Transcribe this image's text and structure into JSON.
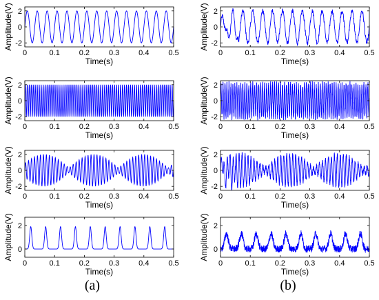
{
  "panel_labels": [
    "(a)",
    "(b)"
  ],
  "chart_data": [
    {
      "id": "a1",
      "type": "line",
      "column": 0,
      "row": 0,
      "xlabel": "Time(s)",
      "ylabel": "Amplitude(V)",
      "xlim": [
        0,
        0.5
      ],
      "ylim": [
        -2.5,
        2.5
      ],
      "yticks": [
        -2,
        0,
        2
      ],
      "xticks": [
        0,
        0.1,
        0.2,
        0.3,
        0.4,
        0.5
      ],
      "grid": false,
      "signal": {
        "kind": "sine",
        "amplitude": 2,
        "frequency_hz": 30,
        "points": 600,
        "noise": 0
      }
    },
    {
      "id": "b1",
      "type": "line",
      "column": 1,
      "row": 0,
      "xlabel": "Time(s)",
      "ylabel": "Amplitude(V)",
      "xlim": [
        0,
        0.5
      ],
      "ylim": [
        -2.5,
        2.5
      ],
      "yticks": [
        -2,
        0,
        2
      ],
      "xticks": [
        0,
        0.1,
        0.2,
        0.3,
        0.4,
        0.5
      ],
      "grid": false,
      "signal": {
        "kind": "sine",
        "amplitude": 2,
        "frequency_hz": 30,
        "points": 600,
        "noise": 0.3,
        "startup_distortion": true
      }
    },
    {
      "id": "a2",
      "type": "line",
      "column": 0,
      "row": 1,
      "xlabel": "Time(s)",
      "ylabel": "Amplitude(V)",
      "xlim": [
        0,
        0.5
      ],
      "ylim": [
        -2.5,
        2.5
      ],
      "yticks": [
        -2,
        0,
        2
      ],
      "xticks": [
        0,
        0.1,
        0.2,
        0.3,
        0.4,
        0.5
      ],
      "grid": false,
      "signal": {
        "kind": "sine",
        "amplitude": 2,
        "frequency_hz": 150,
        "points": 1500,
        "noise": 0
      }
    },
    {
      "id": "b2",
      "type": "line",
      "column": 1,
      "row": 1,
      "xlabel": "Time(s)",
      "ylabel": "Amplitude(V)",
      "xlim": [
        0,
        0.5
      ],
      "ylim": [
        -2.5,
        2.5
      ],
      "yticks": [
        -2,
        0,
        2
      ],
      "xticks": [
        0,
        0.1,
        0.2,
        0.3,
        0.4,
        0.5
      ],
      "grid": false,
      "signal": {
        "kind": "sine",
        "amplitude": 2,
        "frequency_hz": 150,
        "points": 1500,
        "noise": 0.45
      }
    },
    {
      "id": "a3",
      "type": "line",
      "column": 0,
      "row": 2,
      "xlabel": "Time(s)",
      "ylabel": "Amplitude(V)",
      "xlim": [
        0,
        0.5
      ],
      "ylim": [
        -2.5,
        2.5
      ],
      "yticks": [
        -2,
        0,
        2
      ],
      "xticks": [
        0,
        0.1,
        0.2,
        0.3,
        0.4,
        0.5
      ],
      "grid": false,
      "signal": {
        "kind": "am",
        "amplitude": 2,
        "carrier_hz": 100,
        "envelope_hz": 6,
        "points": 1200,
        "noise": 0
      }
    },
    {
      "id": "b3",
      "type": "line",
      "column": 1,
      "row": 2,
      "xlabel": "Time(s)",
      "ylabel": "Amplitude(V)",
      "xlim": [
        0,
        0.5
      ],
      "ylim": [
        -2.5,
        2.5
      ],
      "yticks": [
        -2,
        0,
        2
      ],
      "xticks": [
        0,
        0.1,
        0.2,
        0.3,
        0.4,
        0.5
      ],
      "grid": false,
      "signal": {
        "kind": "am",
        "amplitude": 2,
        "carrier_hz": 100,
        "envelope_hz": 6,
        "points": 1200,
        "noise": 0.3,
        "startup_distortion": true
      }
    },
    {
      "id": "a4",
      "type": "line",
      "column": 0,
      "row": 3,
      "xlabel": "Time(s)",
      "ylabel": "Amplitude(V)",
      "xlim": [
        0,
        0.5
      ],
      "ylim": [
        -0.7,
        2.7
      ],
      "yticks": [
        0,
        2
      ],
      "xticks": [
        0,
        0.1,
        0.2,
        0.3,
        0.4,
        0.5
      ],
      "grid": false,
      "signal": {
        "kind": "pulse",
        "amplitude": 1.9,
        "period_s": 0.05,
        "first_peak_s": 0.02,
        "width_s": 0.0035,
        "points": 1000,
        "noise": 0
      }
    },
    {
      "id": "b4",
      "type": "line",
      "column": 1,
      "row": 3,
      "xlabel": "Time(s)",
      "ylabel": "Amplitude(V)",
      "xlim": [
        0,
        0.5
      ],
      "ylim": [
        -0.7,
        2.7
      ],
      "yticks": [
        0,
        2
      ],
      "xticks": [
        0,
        0.1,
        0.2,
        0.3,
        0.4,
        0.5
      ],
      "grid": false,
      "signal": {
        "kind": "pulse",
        "amplitude": 1.3,
        "period_s": 0.05,
        "first_peak_s": 0.02,
        "width_s": 0.006,
        "points": 1000,
        "noise": 0.25
      }
    }
  ],
  "colors": {
    "line": "#0000ff",
    "axis": "#000000"
  }
}
